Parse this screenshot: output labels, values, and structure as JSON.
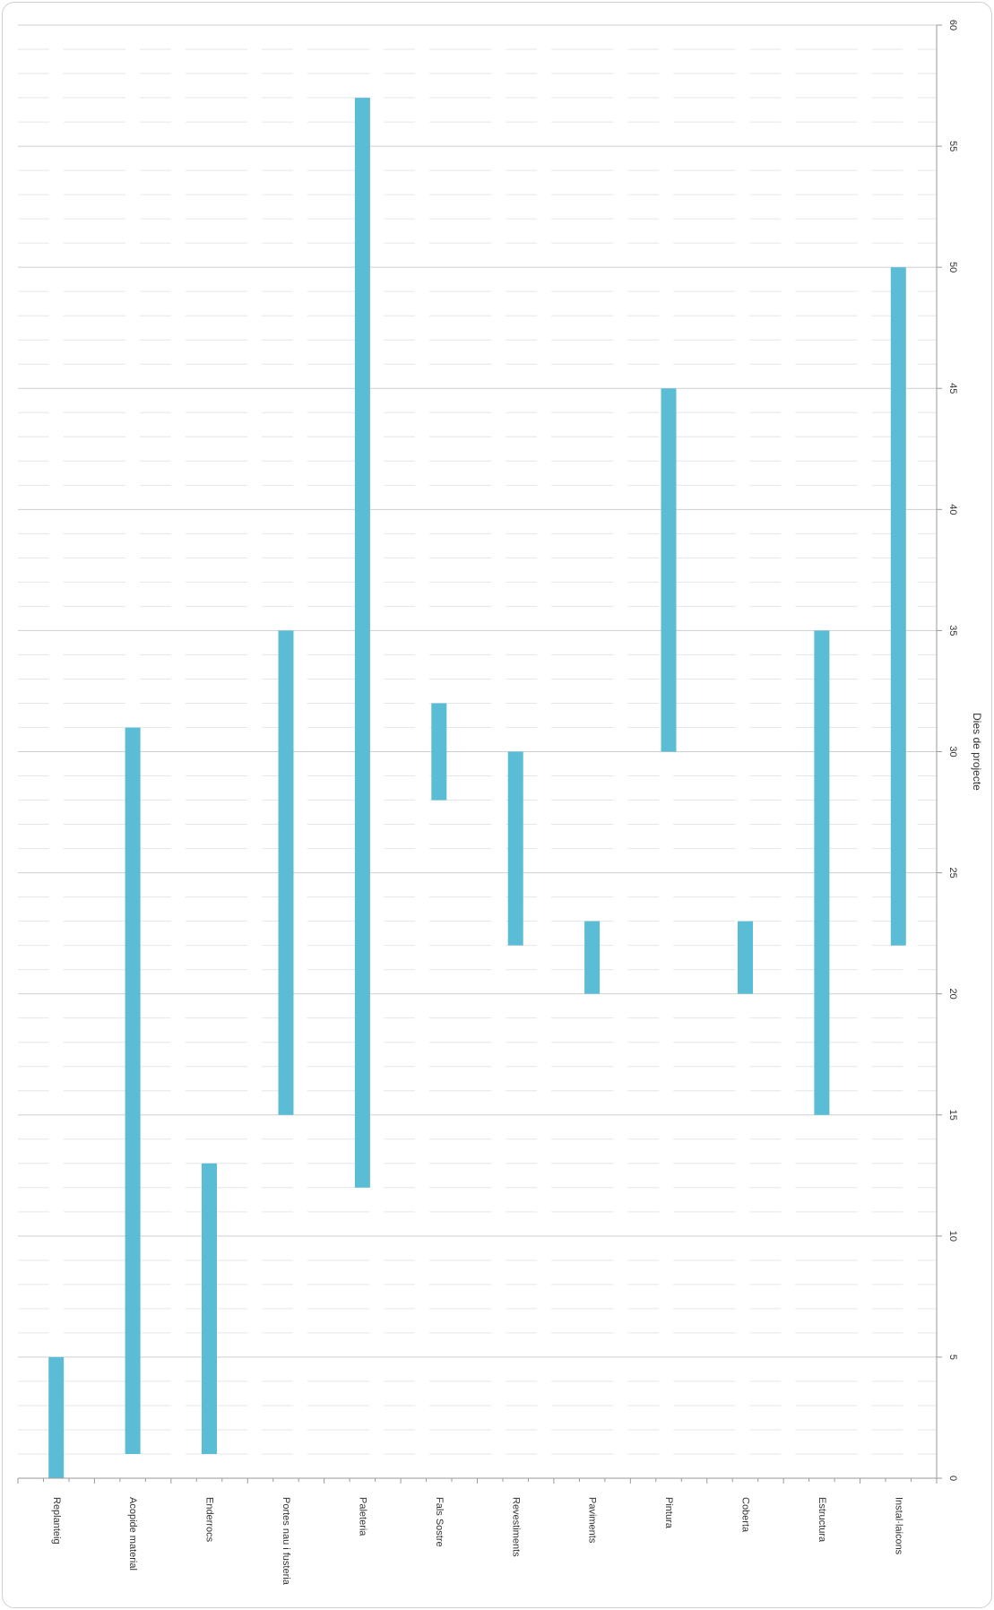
{
  "chart_data": {
    "type": "bar",
    "orientation": "floating-range",
    "categories": [
      "Replanteig",
      "Acopide material",
      "Enderrocs",
      "Portes nau i fusteria",
      "Paleteria",
      "Fals Sostre",
      "Revestiments",
      "Paviments",
      "Pintura",
      "Coberta",
      "Estructura",
      "Instal·laicons"
    ],
    "series": [
      {
        "start": [
          0,
          1,
          1,
          15,
          12,
          28,
          22,
          20,
          30,
          20,
          15,
          22
        ],
        "end": [
          5,
          31,
          13,
          35,
          57,
          32,
          30,
          23,
          45,
          23,
          35,
          50
        ]
      }
    ],
    "value_axis": {
      "label": "Dies de projecte",
      "range": [
        0,
        60
      ],
      "major_ticks": [
        0,
        5,
        10,
        15,
        20,
        25,
        30,
        35,
        40,
        45,
        50,
        55,
        60
      ],
      "minor_step": 1
    },
    "grid": true,
    "legend": "none",
    "colors": {
      "bar": "#5bbcd6",
      "grid_major": "#cfcfcf",
      "grid_minor": "#e6e6e6",
      "axis": "#9a9a9a"
    }
  }
}
